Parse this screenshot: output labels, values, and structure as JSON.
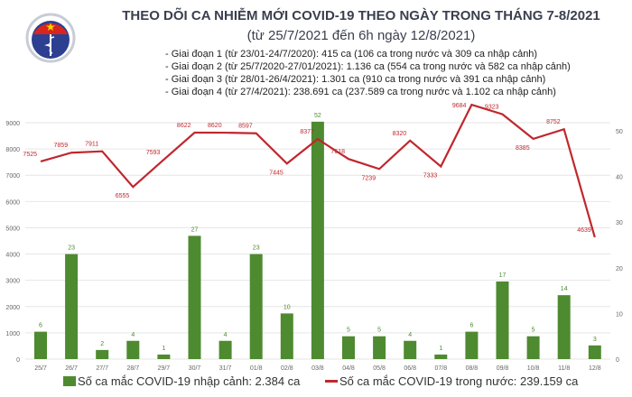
{
  "header": {
    "title": "THEO DÕI CA NHIỄM MỚI COVID-19 THEO NGÀY TRONG THÁNG 7-8/2021",
    "subtitle": "(từ 25/7/2021 đến 6h ngày 12/8/2021)",
    "logo_text": "BỘ Y TẾ",
    "bullets": [
      "- Giai đoạn 1 (từ 23/01-24/7/2020): 415 ca (106 ca trong nước và 309 ca nhập cảnh)",
      "- Giai đoạn 2 (từ 25/7/2020-27/01/2021): 1.136 ca (554 ca trong nước và 582 ca nhập cảnh)",
      "- Giai đoạn 3 (từ 28/01-26/4/2021): 1.301 ca (910 ca trong nước và 391 ca nhập cảnh)",
      "- Giai đoạn 4 (từ 27/4/2021): 238.691 ca (237.589 ca trong nước và 1.102 ca nhập cảnh)"
    ]
  },
  "chart_data": {
    "type": "bar+line",
    "categories": [
      "25/7",
      "26/7",
      "27/7",
      "28/7",
      "29/7",
      "30/7",
      "31/7",
      "01/8",
      "02/8",
      "03/8",
      "04/8",
      "05/8",
      "06/8",
      "07/8",
      "08/8",
      "09/8",
      "10/8",
      "11/8",
      "12/8"
    ],
    "series": [
      {
        "name": "Số ca mắc COVID-19 nhập cảnh: 2.384 ca",
        "type": "bar",
        "axis": "right",
        "color": "#4e8a2f",
        "values": [
          6,
          23,
          2,
          4,
          1,
          27,
          4,
          23,
          10,
          52,
          5,
          5,
          4,
          1,
          6,
          17,
          5,
          14,
          3
        ]
      },
      {
        "name": "Số ca mắc COVID-19 trong nước: 239.159 ca",
        "type": "line",
        "axis": "left",
        "color": "#c0272d",
        "values": [
          7525,
          7859,
          7911,
          6555,
          7593,
          8622,
          8620,
          8597,
          7445,
          8377,
          7618,
          7239,
          8320,
          7333,
          9684,
          9323,
          8385,
          8752,
          4639
        ]
      }
    ],
    "left_axis": {
      "ticks": [
        0,
        1000,
        2000,
        3000,
        4000,
        5000,
        6000,
        7000,
        8000,
        9000
      ]
    },
    "right_axis": {
      "ticks": [
        0,
        10,
        20,
        30,
        40,
        50
      ]
    },
    "grid": true,
    "legend": "bottom"
  }
}
